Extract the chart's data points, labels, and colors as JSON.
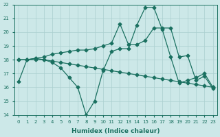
{
  "xlabel": "Humidex (Indice chaleur)",
  "bg_color": "#cce8e8",
  "grid_color": "#aacfcf",
  "line_color": "#1a7060",
  "xlim_min": -0.5,
  "xlim_max": 23.5,
  "ylim_min": 14,
  "ylim_max": 22,
  "yticks": [
    14,
    15,
    16,
    17,
    18,
    19,
    20,
    21,
    22
  ],
  "xticks": [
    0,
    1,
    2,
    3,
    4,
    5,
    6,
    7,
    8,
    9,
    10,
    11,
    12,
    13,
    14,
    15,
    16,
    17,
    18,
    19,
    20,
    21,
    22,
    23
  ],
  "line1_x": [
    0,
    1,
    2,
    3,
    4,
    5,
    6,
    7,
    8,
    9,
    10,
    11,
    12,
    13,
    14,
    15,
    16,
    17,
    18,
    19,
    20,
    21,
    22,
    23
  ],
  "line1_y": [
    16.4,
    18.0,
    18.1,
    18.0,
    17.8,
    17.4,
    16.7,
    16.0,
    14.0,
    15.0,
    17.2,
    18.6,
    18.8,
    18.8,
    20.5,
    21.8,
    21.8,
    20.2,
    18.2,
    16.3,
    16.5,
    16.7,
    17.0,
    16.0
  ],
  "line2_x": [
    0,
    1,
    2,
    3,
    4,
    5,
    6,
    7,
    8,
    9,
    10,
    11,
    12,
    13,
    14,
    15,
    16,
    17,
    18,
    19,
    20,
    21,
    22,
    23
  ],
  "line2_y": [
    18.0,
    18.0,
    18.0,
    18.0,
    17.9,
    17.8,
    17.7,
    17.6,
    17.5,
    17.4,
    17.3,
    17.2,
    17.1,
    17.0,
    16.9,
    16.8,
    16.7,
    16.6,
    16.5,
    16.4,
    16.3,
    16.2,
    16.1,
    16.0
  ],
  "line3_x": [
    0,
    1,
    2,
    3,
    4,
    5,
    6,
    7,
    8,
    9,
    10,
    11,
    12,
    13,
    14,
    15,
    16,
    17,
    18,
    19,
    20,
    21,
    22,
    23
  ],
  "line3_y": [
    18.0,
    18.0,
    18.1,
    18.2,
    18.4,
    18.5,
    18.6,
    18.7,
    18.7,
    18.8,
    19.0,
    19.2,
    20.6,
    19.1,
    19.1,
    19.4,
    20.3,
    20.3,
    20.3,
    18.2,
    18.3,
    16.5,
    16.8,
    15.9
  ]
}
